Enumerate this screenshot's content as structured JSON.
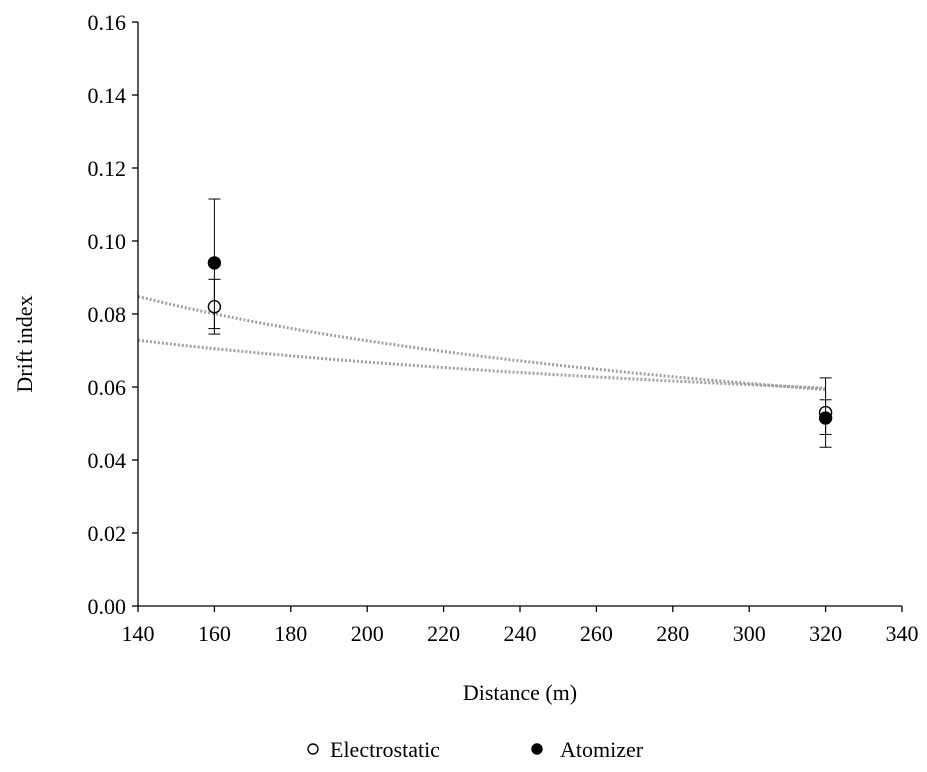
{
  "chart_data": {
    "type": "scatter",
    "title": "",
    "xlabel": "Distance (m)",
    "ylabel": "Drift index",
    "xlim": [
      140,
      340
    ],
    "ylim": [
      0,
      0.16
    ],
    "x_ticks": [
      "140",
      "160",
      "180",
      "200",
      "220",
      "240",
      "260",
      "280",
      "300",
      "320",
      "340"
    ],
    "y_ticks": [
      "0.00",
      "0.02",
      "0.04",
      "0.06",
      "0.08",
      "0.10",
      "0.12",
      "0.14",
      "0.16"
    ],
    "grid": false,
    "legend_position": "bottom",
    "series": [
      {
        "name": "Electrostatic",
        "marker": "open-circle",
        "color": "#000000",
        "points": [
          {
            "x": 160,
            "y": 0.082,
            "err_low": 0.0075,
            "err_high": 0.0075
          },
          {
            "x": 320,
            "y": 0.053,
            "err_low": 0.006,
            "err_high": 0.0095
          }
        ],
        "trendline": {
          "type": "power",
          "y_at_140": 0.0848,
          "y_at_320": 0.0593,
          "color": "#a0a0a0",
          "dash": "dotted"
        }
      },
      {
        "name": "Atomizer",
        "marker": "filled-circle",
        "color": "#000000",
        "points": [
          {
            "x": 160,
            "y": 0.094,
            "err_low": 0.018,
            "err_high": 0.0175
          },
          {
            "x": 320,
            "y": 0.0515,
            "err_low": 0.008,
            "err_high": 0.005
          }
        ],
        "trendline": {
          "type": "power",
          "y_at_140": 0.0728,
          "y_at_320": 0.0597,
          "color": "#a0a0a0",
          "dash": "dotted"
        }
      }
    ]
  }
}
